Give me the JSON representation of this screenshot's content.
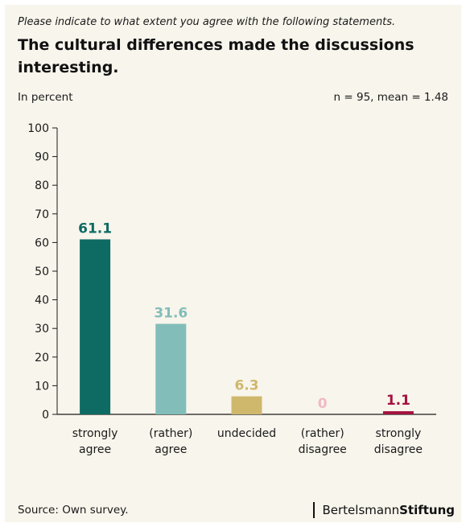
{
  "header": {
    "subtitle": "Please indicate to what extent you agree with the following statements.",
    "title": "The cultural differences made the discussions interesting."
  },
  "meta": {
    "unit_label": "In percent",
    "stats": "n = 95, mean = 1.48"
  },
  "footer": {
    "source": "Source: Own survey.",
    "brand_part1": "Bertelsmann",
    "brand_part2": "Stiftung"
  },
  "chart_data": {
    "type": "bar",
    "categories": [
      [
        "strongly",
        "agree"
      ],
      [
        "(rather)",
        "agree"
      ],
      [
        "undecided"
      ],
      [
        "(rather)",
        "disagree"
      ],
      [
        "strongly",
        "disagree"
      ]
    ],
    "values": [
      61.1,
      31.6,
      6.3,
      0,
      1.1
    ],
    "value_labels": [
      "61.1",
      "31.6",
      "6.3",
      "0",
      "1.1"
    ],
    "colors": [
      "#0d6b63",
      "#82bdb9",
      "#cfb86c",
      "#f0b9c6",
      "#a3123f"
    ],
    "ylim": [
      0,
      100
    ],
    "yticks": [
      0,
      10,
      20,
      30,
      40,
      50,
      60,
      70,
      80,
      90,
      100
    ],
    "grid": false,
    "legend": "none"
  }
}
